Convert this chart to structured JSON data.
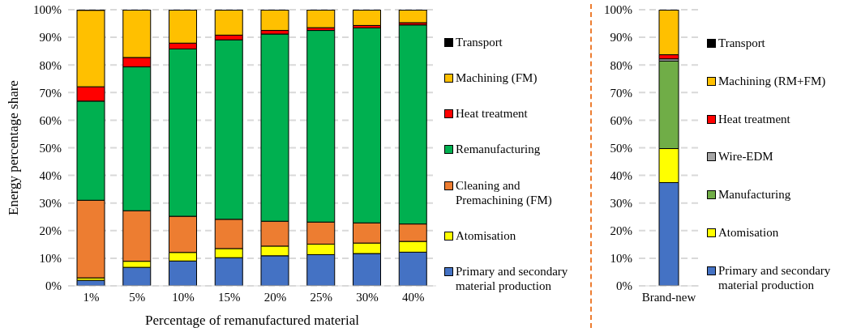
{
  "chart_data": [
    {
      "type": "bar",
      "stacked": true,
      "xlabel": "Percentage of remanufactured material",
      "ylabel": "Energy percentage share",
      "categories": [
        "1%",
        "5%",
        "10%",
        "15%",
        "20%",
        "25%",
        "30%",
        "40%"
      ],
      "ylim": [
        0,
        100
      ],
      "yticks": [
        {
          "value": 0,
          "label": "0%"
        },
        {
          "value": 10,
          "label": "10%"
        },
        {
          "value": 20,
          "label": "20%"
        },
        {
          "value": 30,
          "label": "30%"
        },
        {
          "value": 40,
          "label": "40%"
        },
        {
          "value": 50,
          "label": "50%"
        },
        {
          "value": 60,
          "label": "60%"
        },
        {
          "value": 70,
          "label": "70%"
        },
        {
          "value": 80,
          "label": "80%"
        },
        {
          "value": 90,
          "label": "90%"
        },
        {
          "value": 100,
          "label": "100%"
        }
      ],
      "grid": "y",
      "legend": "right",
      "series": [
        {
          "name": "Primary and secondary material production",
          "color": "#4472c4",
          "values": [
            2.0,
            6.7,
            9.0,
            10.2,
            10.9,
            11.3,
            11.7,
            12.2
          ]
        },
        {
          "name": "Atomisation",
          "color": "#ffff00",
          "values": [
            0.9,
            2.2,
            3.1,
            3.3,
            3.5,
            3.8,
            3.8,
            3.9
          ]
        },
        {
          "name": "Cleaning and Premachining (FM)",
          "color": "#ed7d31",
          "values": [
            28.1,
            18.3,
            13.1,
            10.6,
            9.0,
            8.0,
            7.3,
            6.3
          ]
        },
        {
          "name": "Remanufacturing",
          "color": "#00b050",
          "values": [
            35.9,
            52.1,
            60.6,
            65.0,
            67.8,
            69.4,
            70.6,
            72.1
          ]
        },
        {
          "name": "Heat treatment",
          "color": "#ff0000",
          "values": [
            5.2,
            3.4,
            2.1,
            1.7,
            1.3,
            1.0,
            0.9,
            0.8
          ]
        },
        {
          "name": "Machining (FM)",
          "color": "#ffc000",
          "values": [
            27.7,
            17.2,
            12.0,
            9.1,
            7.4,
            6.4,
            5.6,
            4.6
          ]
        },
        {
          "name": "Transport",
          "color": "#000000",
          "values": [
            0.2,
            0.1,
            0.1,
            0.1,
            0.1,
            0.1,
            0.1,
            0.1
          ]
        }
      ]
    },
    {
      "type": "bar",
      "stacked": true,
      "categories": [
        "Brand-new"
      ],
      "ylim": [
        0,
        100
      ],
      "yticks": [
        {
          "value": 0,
          "label": "0%"
        },
        {
          "value": 10,
          "label": "10%"
        },
        {
          "value": 20,
          "label": "20%"
        },
        {
          "value": 30,
          "label": "30%"
        },
        {
          "value": 40,
          "label": "40%"
        },
        {
          "value": 50,
          "label": "50%"
        },
        {
          "value": 60,
          "label": "60%"
        },
        {
          "value": 70,
          "label": "70%"
        },
        {
          "value": 80,
          "label": "80%"
        },
        {
          "value": 90,
          "label": "90%"
        },
        {
          "value": 100,
          "label": "100%"
        }
      ],
      "grid": "y",
      "legend": "right",
      "series": [
        {
          "name": "Primary and secondary material production",
          "color": "#4472c4",
          "values": [
            37.4
          ]
        },
        {
          "name": "Atomisation",
          "color": "#ffff00",
          "values": [
            12.3
          ]
        },
        {
          "name": "Manufacturing",
          "color": "#70ad47",
          "values": [
            31.7
          ]
        },
        {
          "name": "Wire-EDM",
          "color": "#a5a5a5",
          "values": [
            0.8
          ]
        },
        {
          "name": "Heat treatment",
          "color": "#ff0000",
          "values": [
            1.5
          ]
        },
        {
          "name": "Machining (RM+FM)",
          "color": "#ffc000",
          "values": [
            16.2
          ]
        },
        {
          "name": "Transport",
          "color": "#000000",
          "values": [
            0.1
          ]
        }
      ]
    }
  ]
}
